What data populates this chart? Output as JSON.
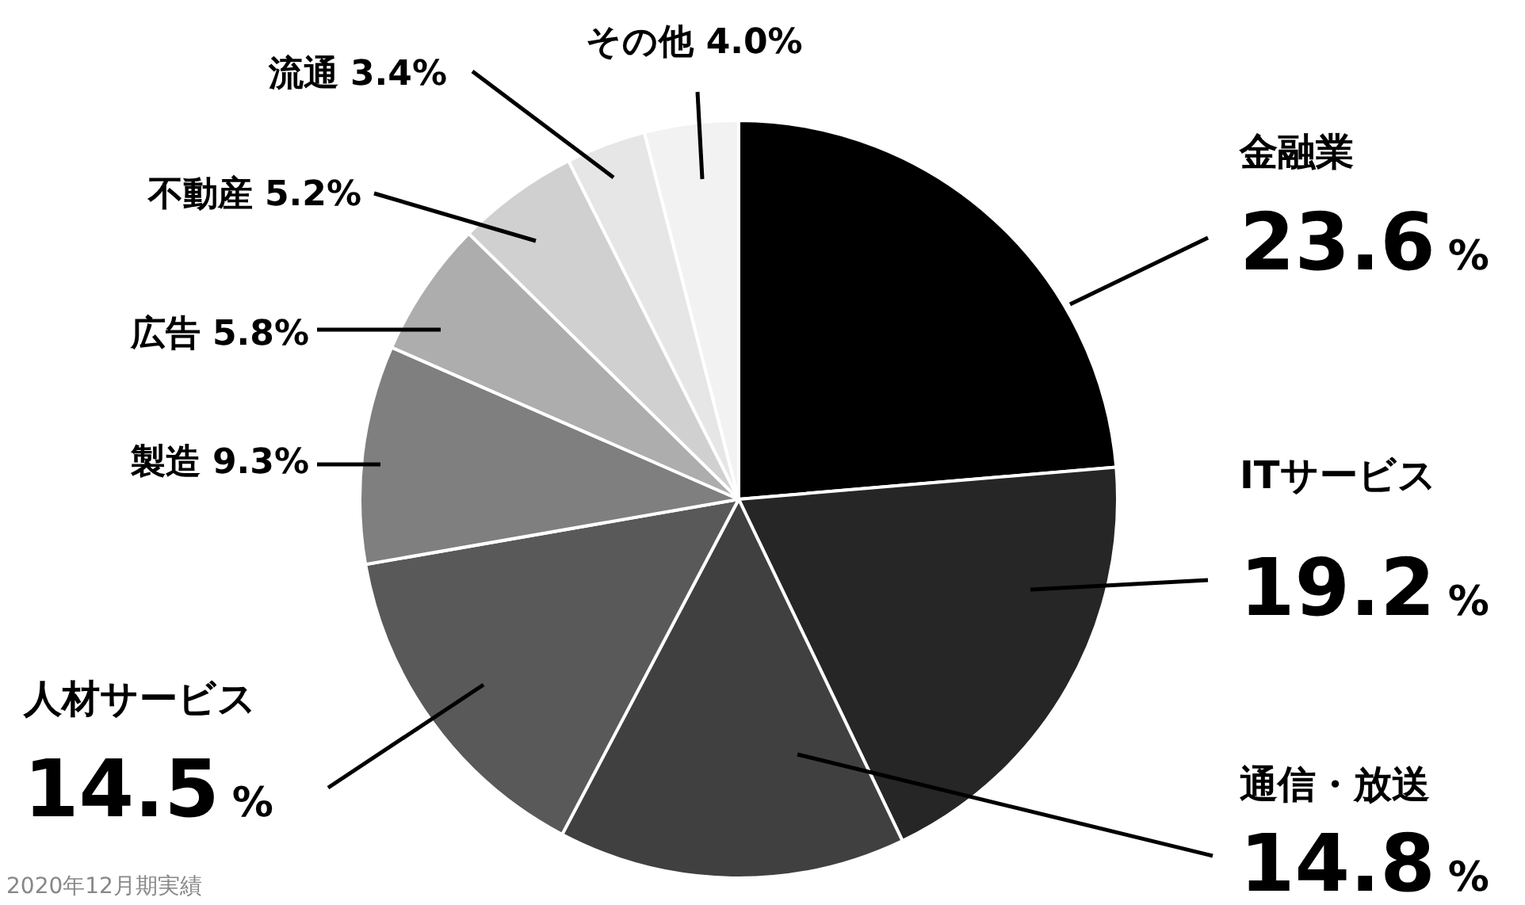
{
  "chart_data": {
    "type": "pie",
    "categories": [
      "金融業",
      "ITサービス",
      "通信・放送",
      "人材サービス",
      "製造",
      "広告",
      "不動産",
      "流通",
      "その他"
    ],
    "values": [
      23.6,
      19.2,
      14.8,
      14.5,
      9.3,
      5.8,
      5.2,
      3.4,
      4.0
    ],
    "colors": [
      "#000000",
      "#262626",
      "#404040",
      "#595959",
      "#7f7f7f",
      "#adadad",
      "#d0d0d0",
      "#e6e6e6",
      "#f2f2f2"
    ],
    "value_labels": [
      "23.6%",
      "19.2%",
      "14.8%",
      "14.5%",
      "9.3%",
      "5.8%",
      "5.2%",
      "3.4%",
      "4.0%"
    ],
    "legend": false,
    "annotations": [
      "2020年12月期実績"
    ]
  }
}
